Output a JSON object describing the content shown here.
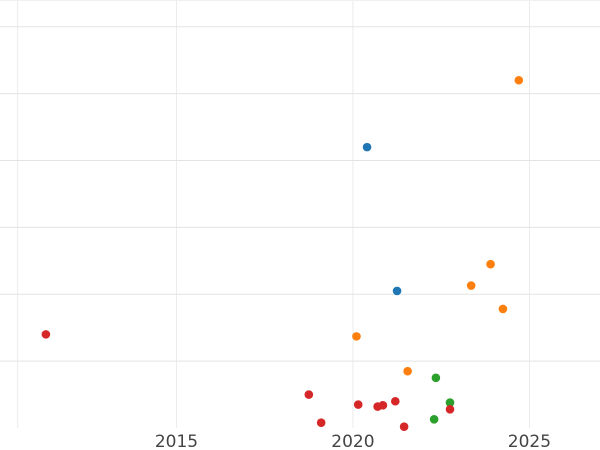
{
  "chart_data": {
    "type": "scatter",
    "title": "",
    "xlabel": "",
    "ylabel": "",
    "xlim": [
      2010,
      2027
    ],
    "ylim": [
      0,
      6.4
    ],
    "grid": true,
    "legend": "none",
    "x_ticks": [
      {
        "value": 2015,
        "label": "2015"
      },
      {
        "value": 2020,
        "label": "2020"
      },
      {
        "value": 2025,
        "label": "2025"
      }
    ],
    "x_minor_grid": [
      2010.5,
      2015,
      2020,
      2025
    ],
    "y_grid": [
      1,
      2,
      3,
      4,
      5,
      6
    ],
    "series": [
      {
        "color": "#1f77b4",
        "points": [
          {
            "x": 2020.4,
            "y": 4.2
          },
          {
            "x": 2021.25,
            "y": 2.05
          }
        ]
      },
      {
        "color": "#ff7f0e",
        "points": [
          {
            "x": 2024.7,
            "y": 5.2
          },
          {
            "x": 2023.9,
            "y": 2.45
          },
          {
            "x": 2023.35,
            "y": 2.13
          },
          {
            "x": 2024.25,
            "y": 1.78
          },
          {
            "x": 2020.1,
            "y": 1.37
          },
          {
            "x": 2021.55,
            "y": 0.85
          }
        ]
      },
      {
        "color": "#2ca02c",
        "points": [
          {
            "x": 2022.35,
            "y": 0.75
          },
          {
            "x": 2022.75,
            "y": 0.38
          },
          {
            "x": 2022.3,
            "y": 0.13
          }
        ]
      },
      {
        "color": "#d62728",
        "points": [
          {
            "x": 2011.3,
            "y": 1.4
          },
          {
            "x": 2018.75,
            "y": 0.5
          },
          {
            "x": 2019.1,
            "y": 0.08
          },
          {
            "x": 2020.15,
            "y": 0.35
          },
          {
            "x": 2020.7,
            "y": 0.32
          },
          {
            "x": 2020.85,
            "y": 0.34
          },
          {
            "x": 2021.2,
            "y": 0.4
          },
          {
            "x": 2021.45,
            "y": 0.02
          },
          {
            "x": 2022.75,
            "y": 0.28
          }
        ]
      }
    ]
  }
}
